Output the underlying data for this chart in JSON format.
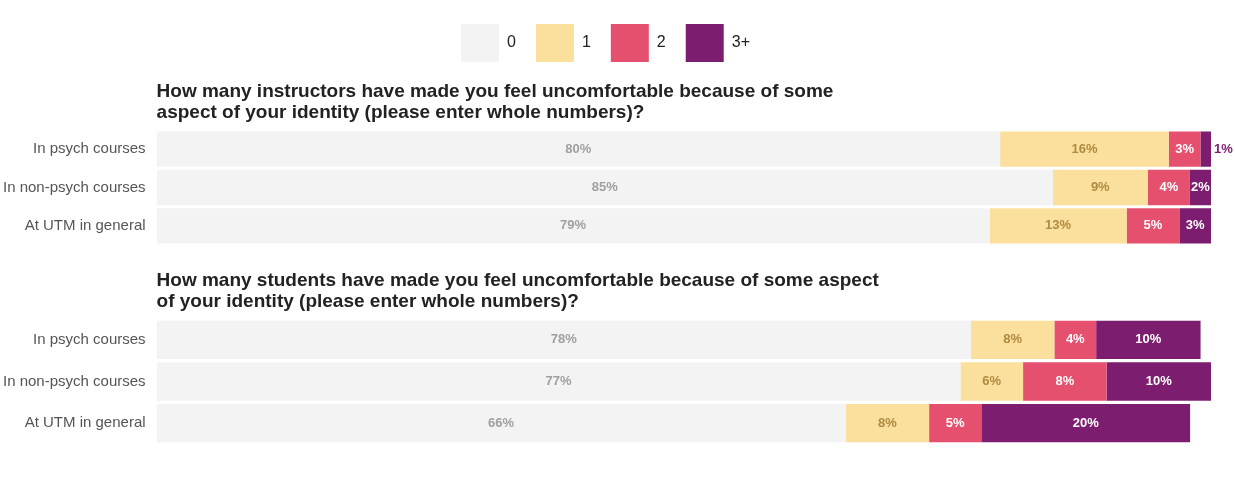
{
  "chart_data": [
    {
      "type": "bar",
      "orientation": "horizontal",
      "stacked": true,
      "title": "How many instructors have made you feel uncomfortable because of some aspect of your identity (please enter whole numbers)?",
      "categories": [
        "In psych courses",
        "In non-psych courses",
        "At UTM in general"
      ],
      "series": [
        {
          "name": "0",
          "color": "#f3f3f3",
          "values": [
            80,
            85,
            79
          ],
          "value_labels": [
            "80%",
            "85%",
            "79%"
          ]
        },
        {
          "name": "1",
          "color": "#fbdf9d",
          "values": [
            16,
            9,
            13
          ],
          "value_labels": [
            "16%",
            "9%",
            "13%"
          ]
        },
        {
          "name": "2",
          "color": "#e5506f",
          "values": [
            3,
            4,
            5
          ],
          "value_labels": [
            "3%",
            "4%",
            "5%"
          ]
        },
        {
          "name": "3+",
          "color": "#7c1d6f",
          "values": [
            1,
            2,
            3
          ],
          "value_labels": [
            "1%",
            "2%",
            "3%"
          ]
        }
      ],
      "legend": "top",
      "tick_labels": "y"
    },
    {
      "type": "bar",
      "orientation": "horizontal",
      "stacked": true,
      "title": "How many students have made you feel uncomfortable because of some aspect of your identity (please enter whole numbers)?",
      "categories": [
        "In psych courses",
        "In non-psych courses",
        "At UTM in general"
      ],
      "series": [
        {
          "color": "#f3f3f3",
          "values": [
            78,
            77,
            66
          ],
          "value_labels": [
            "78%",
            "77%",
            "66%"
          ]
        },
        {
          "color": "#fbdf9d",
          "values": [
            8,
            6,
            8
          ],
          "value_labels": [
            "8%",
            "6%",
            "8%"
          ]
        },
        {
          "color": "#e5506f",
          "values": [
            4,
            8,
            5
          ],
          "value_labels": [
            "4%",
            "8%",
            "5%"
          ]
        },
        {
          "color": "#7c1d6f",
          "values": [
            10,
            10,
            20
          ],
          "value_labels": [
            "10%",
            "10%",
            "20%"
          ]
        }
      ],
      "tick_labels": "y"
    }
  ]
}
